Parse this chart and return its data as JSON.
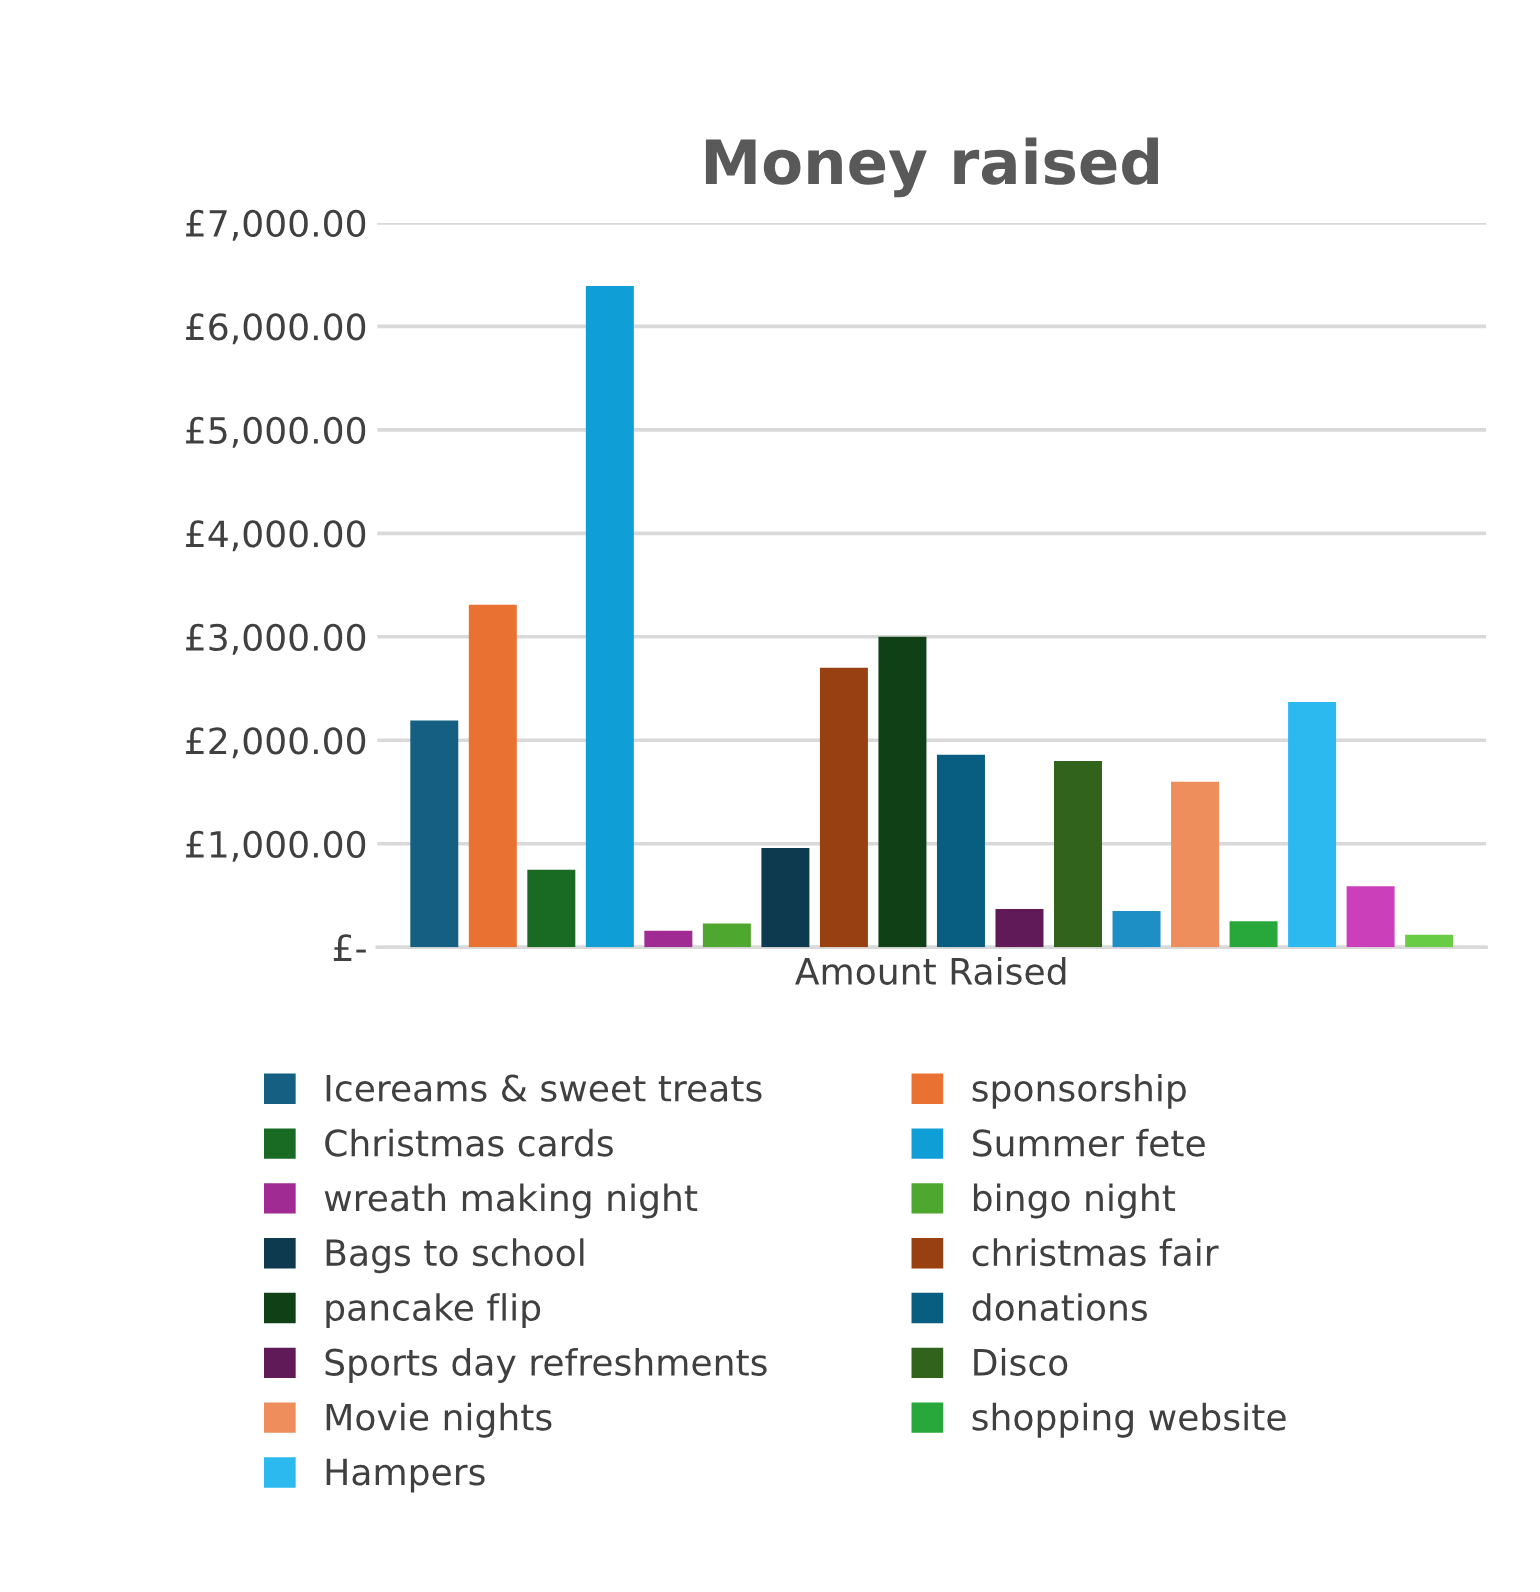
{
  "chart_data": {
    "type": "bar",
    "title": "Money raised",
    "categories": [
      "Amount Raised"
    ],
    "series": [
      {
        "name": "Icereams & sweet treats",
        "color": "#156082",
        "values": [
          2190
        ]
      },
      {
        "name": "sponsorship",
        "color": "#e97132",
        "values": [
          3310
        ]
      },
      {
        "name": "Christmas cards",
        "color": "#196b24",
        "values": [
          750
        ]
      },
      {
        "name": "Summer fete",
        "color": "#0f9ed5",
        "values": [
          6390
        ]
      },
      {
        "name": "wreath making night",
        "color": "#a02b93",
        "values": [
          160
        ]
      },
      {
        "name": "bingo night",
        "color": "#4ea72e",
        "values": [
          230
        ]
      },
      {
        "name": "Bags to school",
        "color": "#0e3a50",
        "values": [
          960
        ]
      },
      {
        "name": "christmas fair",
        "color": "#984011",
        "values": [
          2700
        ]
      },
      {
        "name": "pancake flip",
        "color": "#104016",
        "values": [
          3000
        ]
      },
      {
        "name": "donations",
        "color": "#085e80",
        "values": [
          1860
        ]
      },
      {
        "name": "Sports day refreshments",
        "color": "#601a58",
        "values": [
          370
        ]
      },
      {
        "name": "Disco",
        "color": "#31631c",
        "values": [
          1800
        ]
      },
      {
        "color": "#1d8fc4",
        "values": [
          350
        ]
      },
      {
        "name": "Movie nights",
        "color": "#ed8e5c",
        "values": [
          1600
        ]
      },
      {
        "name": "shopping website",
        "color": "#28a83a",
        "values": [
          250
        ]
      },
      {
        "name": "Hampers",
        "color": "#2cb9f0",
        "values": [
          2370
        ]
      },
      {
        "color": "#cc3fbb",
        "values": [
          590
        ]
      },
      {
        "color": "#69cc45",
        "values": [
          120
        ]
      }
    ],
    "ylim": [
      0,
      7000
    ],
    "yticks": [
      {
        "value": 0,
        "label": "£-"
      },
      {
        "value": 1000,
        "label": "£1,000.00"
      },
      {
        "value": 2000,
        "label": "£2,000.00"
      },
      {
        "value": 3000,
        "label": "£3,000.00"
      },
      {
        "value": 4000,
        "label": "£4,000.00"
      },
      {
        "value": 5000,
        "label": "£5,000.00"
      },
      {
        "value": 6000,
        "label": "£6,000.00"
      },
      {
        "value": 7000,
        "label": "£7,000.00"
      }
    ],
    "grid": "y",
    "legend": "bottom"
  }
}
